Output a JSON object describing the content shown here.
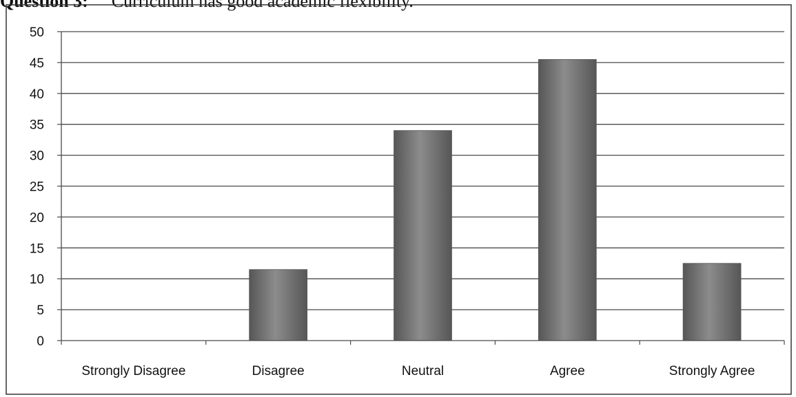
{
  "question": {
    "label": "Question 3:",
    "text": "Curriculum has good academic flexibility."
  },
  "colors": {
    "bar": "#747474",
    "bar_light": "#8c8c8c",
    "bar_dark": "#565656",
    "grid": "#4a4a4a",
    "frame": "#333333"
  },
  "chart_data": {
    "type": "bar",
    "title": "",
    "xlabel": "",
    "ylabel": "",
    "categories": [
      "Strongly Disagree",
      "Disagree",
      "Neutral",
      "Agree",
      "Strongly Agree"
    ],
    "values": [
      0,
      11.5,
      34,
      45.5,
      12.5
    ],
    "ylim": [
      0,
      50
    ],
    "yticks": [
      "0",
      "5",
      "10",
      "15",
      "20",
      "25",
      "30",
      "35",
      "40",
      "45",
      "50"
    ],
    "grid": true,
    "legend": "none"
  }
}
